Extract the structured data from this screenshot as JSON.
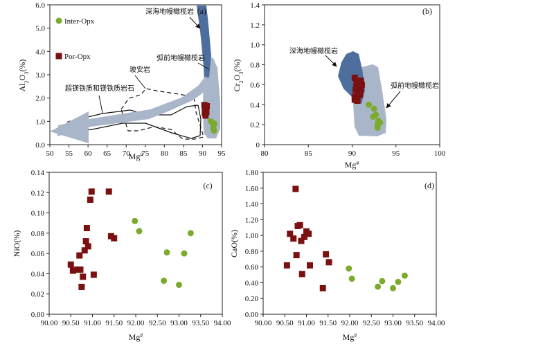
{
  "chart_data": [
    {
      "panel": "(a)",
      "type": "scatter",
      "xlabel": "Mg#",
      "ylabel": "Al2O3(%)",
      "xlim": [
        50,
        95
      ],
      "ylim": [
        0,
        6
      ],
      "xticks": [
        "50",
        "55",
        "60",
        "65",
        "70",
        "75",
        "80",
        "85",
        "90",
        "95"
      ],
      "yticks": [
        "0.0",
        "1.0",
        "2.0",
        "3.0",
        "4.0",
        "5.0",
        "6.0"
      ],
      "legend": [
        {
          "name": "Inter-Opx",
          "color": "#7aab2f",
          "marker": "circle"
        },
        {
          "name": "Por-Opx",
          "color": "#7a1010",
          "marker": "square"
        }
      ],
      "annotations": [
        "深海地幔橄榄岩",
        "弧前地幔橄榄岩",
        "玻安岩",
        "超镁铁质和镁铁质岩石"
      ],
      "series": [
        {
          "name": "Por-Opx",
          "points": [
            [
              90.5,
              1.7
            ],
            [
              90.7,
              1.6
            ],
            [
              90.9,
              1.5
            ],
            [
              91.0,
              1.4
            ],
            [
              90.6,
              1.35
            ],
            [
              90.8,
              1.25
            ],
            [
              91.1,
              1.65
            ],
            [
              90.6,
              1.5
            ]
          ]
        },
        {
          "name": "Inter-Opx",
          "points": [
            [
              92.2,
              1.0
            ],
            [
              92.6,
              0.95
            ],
            [
              92.9,
              0.85
            ],
            [
              92.8,
              0.7
            ],
            [
              93.1,
              0.9
            ],
            [
              93.0,
              0.6
            ]
          ]
        }
      ]
    },
    {
      "panel": "(b)",
      "type": "scatter",
      "xlabel": "Mg#",
      "ylabel": "Cr2O3(%)",
      "xlim": [
        80,
        100
      ],
      "ylim": [
        0,
        1.4
      ],
      "xticks": [
        "80",
        "85",
        "90",
        "95",
        "100"
      ],
      "yticks": [
        "0",
        "0.2",
        "0.4",
        "0.6",
        "0.8",
        "1.0",
        "1.2",
        "1.4"
      ],
      "annotations": [
        "深海地幔橄榄岩",
        "弧前地幔橄榄岩"
      ],
      "series": [
        {
          "name": "Por-Opx",
          "points": [
            [
              90.3,
              0.67
            ],
            [
              90.5,
              0.62
            ],
            [
              90.8,
              0.6
            ],
            [
              91.0,
              0.64
            ],
            [
              90.4,
              0.55
            ],
            [
              90.7,
              0.52
            ],
            [
              90.9,
              0.5
            ],
            [
              91.0,
              0.55
            ],
            [
              90.3,
              0.48
            ],
            [
              90.6,
              0.47
            ],
            [
              90.3,
              0.45
            ],
            [
              90.6,
              0.44
            ],
            [
              90.5,
              0.58
            ],
            [
              91.1,
              0.6
            ]
          ]
        },
        {
          "name": "Inter-Opx",
          "points": [
            [
              91.9,
              0.4
            ],
            [
              92.5,
              0.36
            ],
            [
              92.7,
              0.3
            ],
            [
              92.4,
              0.28
            ],
            [
              93.0,
              0.24
            ],
            [
              92.9,
              0.2
            ],
            [
              93.2,
              0.22
            ],
            [
              92.9,
              0.17
            ]
          ]
        }
      ]
    },
    {
      "panel": "(c)",
      "type": "scatter",
      "xlabel": "Mg#",
      "ylabel": "NiO(%)",
      "xlim": [
        90.0,
        94.0
      ],
      "ylim": [
        0.0,
        0.14
      ],
      "xticks": [
        "90.00",
        "90.50",
        "91.00",
        "91.50",
        "92.00",
        "92.50",
        "93.00",
        "93.50",
        "94.00"
      ],
      "yticks": [
        "0.00",
        "0.02",
        "0.04",
        "0.06",
        "0.08",
        "0.10",
        "0.12",
        "0.14"
      ],
      "series": [
        {
          "name": "Por-Opx",
          "points": [
            [
              90.5,
              0.049
            ],
            [
              90.55,
              0.043
            ],
            [
              90.65,
              0.044
            ],
            [
              90.7,
              0.058
            ],
            [
              90.72,
              0.044
            ],
            [
              90.75,
              0.027
            ],
            [
              90.78,
              0.037
            ],
            [
              90.82,
              0.063
            ],
            [
              90.85,
              0.072
            ],
            [
              90.87,
              0.085
            ],
            [
              90.9,
              0.067
            ],
            [
              90.95,
              0.113
            ],
            [
              90.98,
              0.121
            ],
            [
              91.03,
              0.039
            ],
            [
              91.38,
              0.121
            ],
            [
              91.43,
              0.077
            ],
            [
              91.5,
              0.075
            ]
          ]
        },
        {
          "name": "Inter-Opx",
          "points": [
            [
              91.98,
              0.092
            ],
            [
              92.08,
              0.082
            ],
            [
              92.65,
              0.033
            ],
            [
              92.72,
              0.061
            ],
            [
              93.0,
              0.029
            ],
            [
              93.12,
              0.06
            ],
            [
              93.27,
              0.08
            ]
          ]
        }
      ]
    },
    {
      "panel": "(d)",
      "type": "scatter",
      "xlabel": "Mg#",
      "ylabel": "CaO(%)",
      "xlim": [
        90.0,
        94.0
      ],
      "ylim": [
        0.0,
        1.8
      ],
      "xticks": [
        "90.00",
        "90.50",
        "91.00",
        "91.50",
        "92.00",
        "92.50",
        "93.00",
        "93.50",
        "94.00"
      ],
      "yticks": [
        "0.00",
        "0.20",
        "0.40",
        "0.60",
        "0.80",
        "1.00",
        "1.20",
        "1.40",
        "1.60",
        "1.80"
      ],
      "series": [
        {
          "name": "Por-Opx",
          "points": [
            [
              90.55,
              0.62
            ],
            [
              90.62,
              1.02
            ],
            [
              90.7,
              0.96
            ],
            [
              90.75,
              1.59
            ],
            [
              90.77,
              0.75
            ],
            [
              90.8,
              1.12
            ],
            [
              90.85,
              1.13
            ],
            [
              90.88,
              0.93
            ],
            [
              90.9,
              0.51
            ],
            [
              90.95,
              0.98
            ],
            [
              91.0,
              1.05
            ],
            [
              91.05,
              1.02
            ],
            [
              91.08,
              0.62
            ],
            [
              91.38,
              0.33
            ],
            [
              91.45,
              0.76
            ],
            [
              91.52,
              0.66
            ]
          ]
        },
        {
          "name": "Inter-Opx",
          "points": [
            [
              91.98,
              0.58
            ],
            [
              92.05,
              0.45
            ],
            [
              92.65,
              0.35
            ],
            [
              92.75,
              0.42
            ],
            [
              93.0,
              0.33
            ],
            [
              93.12,
              0.41
            ],
            [
              93.27,
              0.49
            ]
          ]
        }
      ]
    }
  ]
}
